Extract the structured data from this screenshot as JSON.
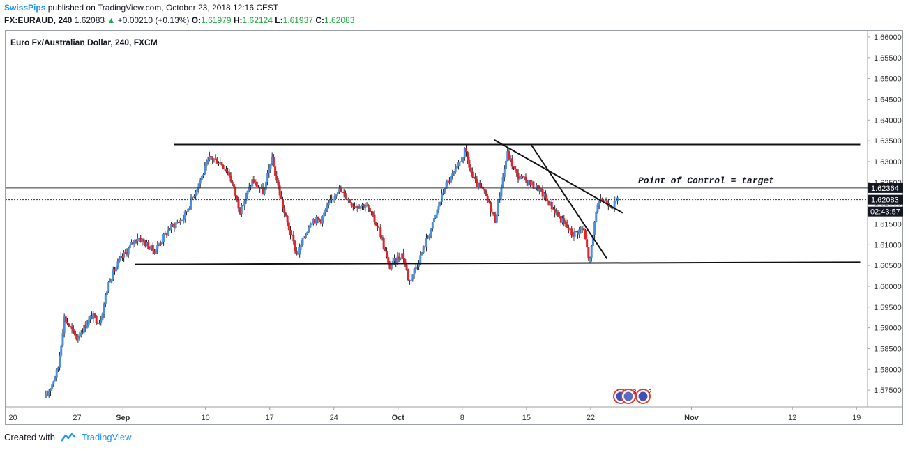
{
  "header": {
    "author": "SwissPips",
    "published": "published on TradingView.com, October 23, 2018 12:16 CEST",
    "symbol": "FX:EURAUD, 240",
    "price": "1.62083",
    "change": "+0.00210 (+0.13%)",
    "o_label": "O:",
    "o_value": "1.61979",
    "h_label": "H:",
    "h_value": "1.62124",
    "l_label": "L:",
    "l_value": "1.61937",
    "c_label": "C:",
    "c_value": "1.62083"
  },
  "footer": {
    "created": "Created with",
    "brand": "TradingView"
  },
  "badges": {
    "count_a": "3",
    "count_b": "2"
  },
  "chart_data": {
    "type": "candlestick",
    "title": "Euro Fx/Australian Dollar, 240, FXCM",
    "y_ticks": [
      "1.66000",
      "1.65500",
      "1.65000",
      "1.64500",
      "1.64000",
      "1.63500",
      "1.63000",
      "1.62500",
      "1.62000",
      "1.61500",
      "1.61000",
      "1.60500",
      "1.60000",
      "1.59500",
      "1.59000",
      "1.58500",
      "1.58000",
      "1.57500"
    ],
    "y_tick_values": [
      1.66,
      1.655,
      1.65,
      1.645,
      1.64,
      1.635,
      1.63,
      1.625,
      1.62,
      1.615,
      1.61,
      1.605,
      1.6,
      1.595,
      1.59,
      1.585,
      1.58,
      1.575
    ],
    "ylim": [
      1.571,
      1.6615
    ],
    "x_ticks": [
      {
        "label": "20",
        "day": 20
      },
      {
        "label": "27",
        "day": 27
      },
      {
        "label": "Sep",
        "day": 32
      },
      {
        "label": "10",
        "day": 41
      },
      {
        "label": "17",
        "day": 48
      },
      {
        "label": "24",
        "day": 55
      },
      {
        "label": "Oct",
        "day": 62
      },
      {
        "label": "8",
        "day": 69
      },
      {
        "label": "15",
        "day": 76
      },
      {
        "label": "22",
        "day": 83
      },
      {
        "label": "Nov",
        "day": 94
      },
      {
        "label": "12",
        "day": 105
      },
      {
        "label": "19",
        "day": 112
      }
    ],
    "x_unit": "days since Aug 1, 2018",
    "xlim": [
      19.2,
      113.2
    ],
    "price_labels": [
      {
        "value": 1.62364,
        "text": "1.62364",
        "style": "solid"
      },
      {
        "value": 1.62083,
        "text": "1.62083",
        "style": "dotted"
      }
    ],
    "countdown": "02:43:57",
    "annotation": "Point of Control = target",
    "lines": [
      {
        "name": "resistance",
        "x1": 37.6,
        "y1": 1.6341,
        "x2": 112.4,
        "y2": 1.6341
      },
      {
        "name": "support",
        "x1": 33.3,
        "y1": 1.60525,
        "x2": 112.4,
        "y2": 1.6058
      },
      {
        "name": "trend-1",
        "x1": 72.5,
        "y1": 1.6352,
        "x2": 86.5,
        "y2": 1.61765
      },
      {
        "name": "trend-2",
        "x1": 76.5,
        "y1": 1.6341,
        "x2": 84.8,
        "y2": 1.6066
      }
    ],
    "anchors": [
      {
        "day": 23.6,
        "price": 1.5732
      },
      {
        "day": 24.9,
        "price": 1.58
      },
      {
        "day": 25.6,
        "price": 1.5925
      },
      {
        "day": 26.9,
        "price": 1.5875
      },
      {
        "day": 28.6,
        "price": 1.5928
      },
      {
        "day": 29.5,
        "price": 1.5915
      },
      {
        "day": 30.5,
        "price": 1.6015
      },
      {
        "day": 31.6,
        "price": 1.606
      },
      {
        "day": 33.6,
        "price": 1.612
      },
      {
        "day": 35.4,
        "price": 1.6085
      },
      {
        "day": 37.1,
        "price": 1.614
      },
      {
        "day": 38.6,
        "price": 1.6165
      },
      {
        "day": 40.1,
        "price": 1.624
      },
      {
        "day": 41.5,
        "price": 1.631
      },
      {
        "day": 42.6,
        "price": 1.63
      },
      {
        "day": 43.6,
        "price": 1.627
      },
      {
        "day": 44.8,
        "price": 1.618
      },
      {
        "day": 46.1,
        "price": 1.6255
      },
      {
        "day": 47.4,
        "price": 1.6225
      },
      {
        "day": 48.2,
        "price": 1.631
      },
      {
        "day": 49.6,
        "price": 1.6175
      },
      {
        "day": 51.0,
        "price": 1.6075
      },
      {
        "day": 52.5,
        "price": 1.616
      },
      {
        "day": 53.6,
        "price": 1.616
      },
      {
        "day": 55.4,
        "price": 1.6235
      },
      {
        "day": 57.2,
        "price": 1.6195
      },
      {
        "day": 58.5,
        "price": 1.6195
      },
      {
        "day": 60.0,
        "price": 1.6135
      },
      {
        "day": 61.0,
        "price": 1.6045
      },
      {
        "day": 62.5,
        "price": 1.608
      },
      {
        "day": 63.2,
        "price": 1.601
      },
      {
        "day": 64.5,
        "price": 1.6075
      },
      {
        "day": 65.8,
        "price": 1.615
      },
      {
        "day": 67.1,
        "price": 1.624
      },
      {
        "day": 68.4,
        "price": 1.628
      },
      {
        "day": 69.3,
        "price": 1.6325
      },
      {
        "day": 70.2,
        "price": 1.6255
      },
      {
        "day": 71.4,
        "price": 1.6225
      },
      {
        "day": 72.6,
        "price": 1.616
      },
      {
        "day": 73.9,
        "price": 1.632
      },
      {
        "day": 75.0,
        "price": 1.6265
      },
      {
        "day": 76.2,
        "price": 1.625
      },
      {
        "day": 77.3,
        "price": 1.6235
      },
      {
        "day": 78.5,
        "price": 1.62
      },
      {
        "day": 79.8,
        "price": 1.616
      },
      {
        "day": 81.0,
        "price": 1.6125
      },
      {
        "day": 82.2,
        "price": 1.614
      },
      {
        "day": 82.9,
        "price": 1.6055
      },
      {
        "day": 83.6,
        "price": 1.6185
      },
      {
        "day": 84.3,
        "price": 1.621
      },
      {
        "day": 85.4,
        "price": 1.6195
      },
      {
        "day": 86.1,
        "price": 1.6208
      }
    ]
  }
}
